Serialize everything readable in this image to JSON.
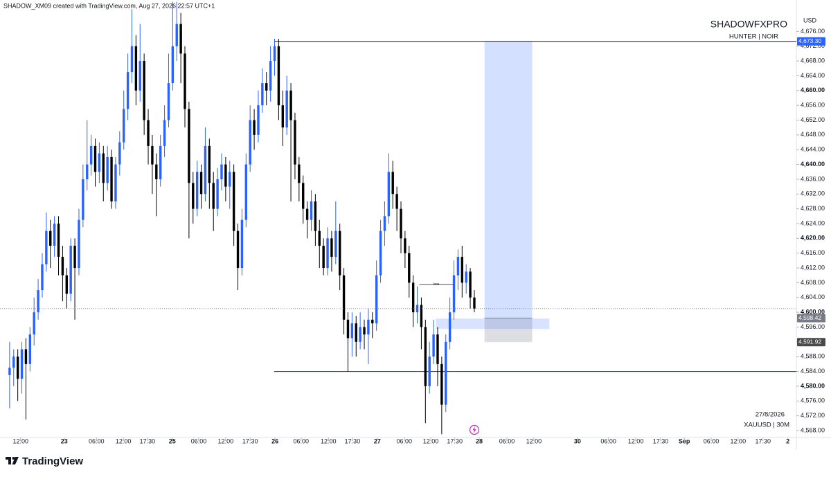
{
  "chart_data": {
    "type": "candlestick",
    "title": "SHADOW_XM09 created with TradingView.com, Aug 27, 2026 22:57 UTC+1",
    "watermark": "SHADOWFXPRO",
    "tagline": "HUNTER | NOIR",
    "currency": "USD",
    "date_label": "27/8/2026",
    "symbol_label": "XAUUSD | 30M",
    "brand": "TradingView",
    "up_color": "#2962ff",
    "down_color": "#000000",
    "ylim": [
      4566.5,
      4684.5
    ],
    "yticks": [
      {
        "value": 4568,
        "label": "4,568.00"
      },
      {
        "value": 4572,
        "label": "4,572.00"
      },
      {
        "value": 4576,
        "label": "4,576.00"
      },
      {
        "value": 4580,
        "label": "4,580.00"
      },
      {
        "value": 4584,
        "label": "4,584.00"
      },
      {
        "value": 4588,
        "label": "4,588.00"
      },
      {
        "value": 4592,
        "label": "4,592.00"
      },
      {
        "value": 4596,
        "label": "4,596.00"
      },
      {
        "value": 4600,
        "label": "4,600.00"
      },
      {
        "value": 4604,
        "label": "4,604.00"
      },
      {
        "value": 4608,
        "label": "4,608.00"
      },
      {
        "value": 4612,
        "label": "4,612.00"
      },
      {
        "value": 4616,
        "label": "4,616.00"
      },
      {
        "value": 4620,
        "label": "4,620.00"
      },
      {
        "value": 4624,
        "label": "4,624.00"
      },
      {
        "value": 4628,
        "label": "4,628.00"
      },
      {
        "value": 4632,
        "label": "4,632.00"
      },
      {
        "value": 4636,
        "label": "4,636.00"
      },
      {
        "value": 4640,
        "label": "4,640.00"
      },
      {
        "value": 4644,
        "label": "4,644.00"
      },
      {
        "value": 4648,
        "label": "4,648.00"
      },
      {
        "value": 4652,
        "label": "4,652.00"
      },
      {
        "value": 4656,
        "label": "4,656.00"
      },
      {
        "value": 4660,
        "label": "4,660.00"
      },
      {
        "value": 4664,
        "label": "4,664.00"
      },
      {
        "value": 4668,
        "label": "4,668.00"
      },
      {
        "value": 4672,
        "label": "4,672.00"
      },
      {
        "value": 4676,
        "label": "4,676.00"
      }
    ],
    "xlim": [
      -1,
      193
    ],
    "xticks": [
      {
        "value": 2.7,
        "label": "12:00"
      },
      {
        "value": 13.4,
        "label": "23"
      },
      {
        "value": 21.3,
        "label": "06:00"
      },
      {
        "value": 27.9,
        "label": "12:00"
      },
      {
        "value": 33.8,
        "label": "17:30"
      },
      {
        "value": 39.9,
        "label": "25"
      },
      {
        "value": 46.4,
        "label": "06:00"
      },
      {
        "value": 53.0,
        "label": "12:00"
      },
      {
        "value": 59.0,
        "label": "17:30"
      },
      {
        "value": 65.1,
        "label": "26"
      },
      {
        "value": 71.5,
        "label": "06:00"
      },
      {
        "value": 78.2,
        "label": "12:00"
      },
      {
        "value": 84.1,
        "label": "17:30"
      },
      {
        "value": 90.2,
        "label": "27"
      },
      {
        "value": 96.8,
        "label": "06:00"
      },
      {
        "value": 103.3,
        "label": "12:00"
      },
      {
        "value": 109.2,
        "label": "17:30"
      },
      {
        "value": 115.2,
        "label": "28"
      },
      {
        "value": 122.0,
        "label": "06:00"
      },
      {
        "value": 128.6,
        "label": "12:00"
      },
      {
        "value": 139.3,
        "label": "30"
      },
      {
        "value": 146.9,
        "label": "06:00"
      },
      {
        "value": 153.6,
        "label": "12:00"
      },
      {
        "value": 159.7,
        "label": "17:30"
      },
      {
        "value": 165.5,
        "label": "Sep"
      },
      {
        "value": 172.1,
        "label": "06:00"
      },
      {
        "value": 178.7,
        "label": "12:00"
      },
      {
        "value": 184.8,
        "label": "17:30"
      },
      {
        "value": 190.9,
        "label": "2"
      }
    ],
    "ohlc": [
      [
        4583,
        4592,
        4574,
        4585
      ],
      [
        4585,
        4590,
        4580,
        4588
      ],
      [
        4588,
        4590,
        4576,
        4582
      ],
      [
        4582,
        4592,
        4578,
        4590
      ],
      [
        4590,
        4593,
        4571,
        4586
      ],
      [
        4586,
        4596,
        4584,
        4594
      ],
      [
        4594,
        4604,
        4591,
        4600
      ],
      [
        4600,
        4609,
        4598,
        4606
      ],
      [
        4606,
        4616,
        4604,
        4613
      ],
      [
        4613,
        4627,
        4611,
        4622
      ],
      [
        4622,
        4625,
        4612,
        4618
      ],
      [
        4618,
        4626,
        4615,
        4624
      ],
      [
        4624,
        4626,
        4610,
        4615
      ],
      [
        4615,
        4618,
        4603,
        4610
      ],
      [
        4610,
        4612,
        4601,
        4605
      ],
      [
        4605,
        4620,
        4603,
        4618
      ],
      [
        4618,
        4620,
        4598,
        4612
      ],
      [
        4612,
        4628,
        4610,
        4625
      ],
      [
        4625,
        4640,
        4623,
        4636
      ],
      [
        4636,
        4652,
        4633,
        4640
      ],
      [
        4640,
        4648,
        4637,
        4645
      ],
      [
        4645,
        4647,
        4634,
        4638
      ],
      [
        4638,
        4646,
        4635,
        4643
      ],
      [
        4643,
        4645,
        4630,
        4635
      ],
      [
        4635,
        4645,
        4633,
        4642
      ],
      [
        4642,
        4644,
        4628,
        4630
      ],
      [
        4630,
        4642,
        4628,
        4640
      ],
      [
        4640,
        4649,
        4637,
        4646
      ],
      [
        4646,
        4660,
        4644,
        4655
      ],
      [
        4655,
        4670,
        4652,
        4665
      ],
      [
        4665,
        4682,
        4662,
        4672
      ],
      [
        4672,
        4675,
        4656,
        4660
      ],
      [
        4660,
        4678,
        4657,
        4668
      ],
      [
        4668,
        4670,
        4648,
        4652
      ],
      [
        4652,
        4655,
        4640,
        4645
      ],
      [
        4645,
        4648,
        4632,
        4640
      ],
      [
        4640,
        4643,
        4626,
        4636
      ],
      [
        4636,
        4648,
        4634,
        4645
      ],
      [
        4645,
        4656,
        4642,
        4652
      ],
      [
        4652,
        4670,
        4650,
        4662
      ],
      [
        4662,
        4684,
        4660,
        4672
      ],
      [
        4672,
        4684,
        4668,
        4678
      ],
      [
        4678,
        4681,
        4662,
        4670
      ],
      [
        4670,
        4672,
        4650,
        4655
      ],
      [
        4655,
        4657,
        4620,
        4635
      ],
      [
        4635,
        4638,
        4624,
        4628
      ],
      [
        4628,
        4641,
        4626,
        4638
      ],
      [
        4638,
        4640,
        4628,
        4632
      ],
      [
        4632,
        4650,
        4630,
        4645
      ],
      [
        4645,
        4647,
        4628,
        4635
      ],
      [
        4635,
        4638,
        4622,
        4628
      ],
      [
        4628,
        4639,
        4626,
        4636
      ],
      [
        4636,
        4643,
        4633,
        4640
      ],
      [
        4640,
        4642,
        4630,
        4634
      ],
      [
        4634,
        4641,
        4628,
        4638
      ],
      [
        4638,
        4640,
        4618,
        4622
      ],
      [
        4622,
        4624,
        4606,
        4612
      ],
      [
        4612,
        4628,
        4610,
        4625
      ],
      [
        4625,
        4643,
        4623,
        4640
      ],
      [
        4640,
        4656,
        4638,
        4652
      ],
      [
        4652,
        4655,
        4644,
        4648
      ],
      [
        4648,
        4660,
        4646,
        4656
      ],
      [
        4656,
        4666,
        4654,
        4662
      ],
      [
        4662,
        4665,
        4656,
        4660
      ],
      [
        4660,
        4672,
        4657,
        4668
      ],
      [
        4668,
        4674,
        4664,
        4672
      ],
      [
        4672,
        4674,
        4652,
        4656
      ],
      [
        4656,
        4660,
        4645,
        4650
      ],
      [
        4650,
        4664,
        4648,
        4660
      ],
      [
        4660,
        4662,
        4630,
        4652
      ],
      [
        4652,
        4654,
        4636,
        4640
      ],
      [
        4640,
        4642,
        4630,
        4635
      ],
      [
        4635,
        4637,
        4624,
        4628
      ],
      [
        4628,
        4630,
        4620,
        4625
      ],
      [
        4625,
        4633,
        4622,
        4630
      ],
      [
        4630,
        4632,
        4618,
        4622
      ],
      [
        4622,
        4625,
        4612,
        4618
      ],
      [
        4618,
        4620,
        4610,
        4612
      ],
      [
        4612,
        4623,
        4610,
        4620
      ],
      [
        4620,
        4622,
        4611,
        4615
      ],
      [
        4615,
        4630,
        4613,
        4622
      ],
      [
        4622,
        4624,
        4606,
        4610
      ],
      [
        4610,
        4612,
        4594,
        4598
      ],
      [
        4598,
        4600,
        4584,
        4593
      ],
      [
        4593,
        4600,
        4588,
        4597
      ],
      [
        4597,
        4599,
        4588,
        4592
      ],
      [
        4592,
        4600,
        4590,
        4596
      ],
      [
        4596,
        4598,
        4590,
        4594
      ],
      [
        4594,
        4601,
        4586,
        4598
      ],
      [
        4598,
        4600,
        4593,
        4597
      ],
      [
        4597,
        4614,
        4595,
        4610
      ],
      [
        4610,
        4625,
        4608,
        4622
      ],
      [
        4622,
        4630,
        4618,
        4626
      ],
      [
        4626,
        4643,
        4624,
        4638
      ],
      [
        4638,
        4641,
        4628,
        4632
      ],
      [
        4632,
        4634,
        4622,
        4628
      ],
      [
        4628,
        4630,
        4616,
        4620
      ],
      [
        4620,
        4622,
        4612,
        4616
      ],
      [
        4616,
        4618,
        4604,
        4608
      ],
      [
        4608,
        4610,
        4596,
        4600
      ],
      [
        4600,
        4607,
        4597,
        4602
      ],
      [
        4602,
        4604,
        4590,
        4596
      ],
      [
        4596,
        4598,
        4570,
        4580
      ],
      [
        4580,
        4592,
        4578,
        4588
      ],
      [
        4588,
        4598,
        4586,
        4594
      ],
      [
        4594,
        4596,
        4580,
        4586
      ],
      [
        4586,
        4588,
        4567,
        4575
      ],
      [
        4575,
        4594,
        4573,
        4592
      ],
      [
        4592,
        4604,
        4590,
        4600
      ],
      [
        4600,
        4614,
        4598,
        4610
      ],
      [
        4610,
        4617,
        4606,
        4615
      ],
      [
        4615,
        4618,
        4604,
        4608
      ],
      [
        4608,
        4613,
        4605,
        4611
      ],
      [
        4611,
        4612,
        4601,
        4604
      ],
      [
        4604,
        4606,
        4600,
        4601
      ]
    ],
    "levels": [
      4673.3,
      4584
    ],
    "position": {
      "target": 4673.3,
      "entry": 4598.42,
      "stop": 4591.92
    },
    "zone": {
      "top": 4598.3,
      "bottom": 4595.5
    },
    "bos": {
      "label": "bos",
      "value": 4607.5
    },
    "price_labels": [
      {
        "value": 4673.3,
        "label": "4,673.30",
        "color": "#2962ff"
      },
      {
        "value": 4598.42,
        "label": "4,598.42",
        "color": "#787b86"
      },
      {
        "value": 4591.92,
        "label": "4,591.92",
        "color": "#4a4a4a"
      }
    ]
  }
}
